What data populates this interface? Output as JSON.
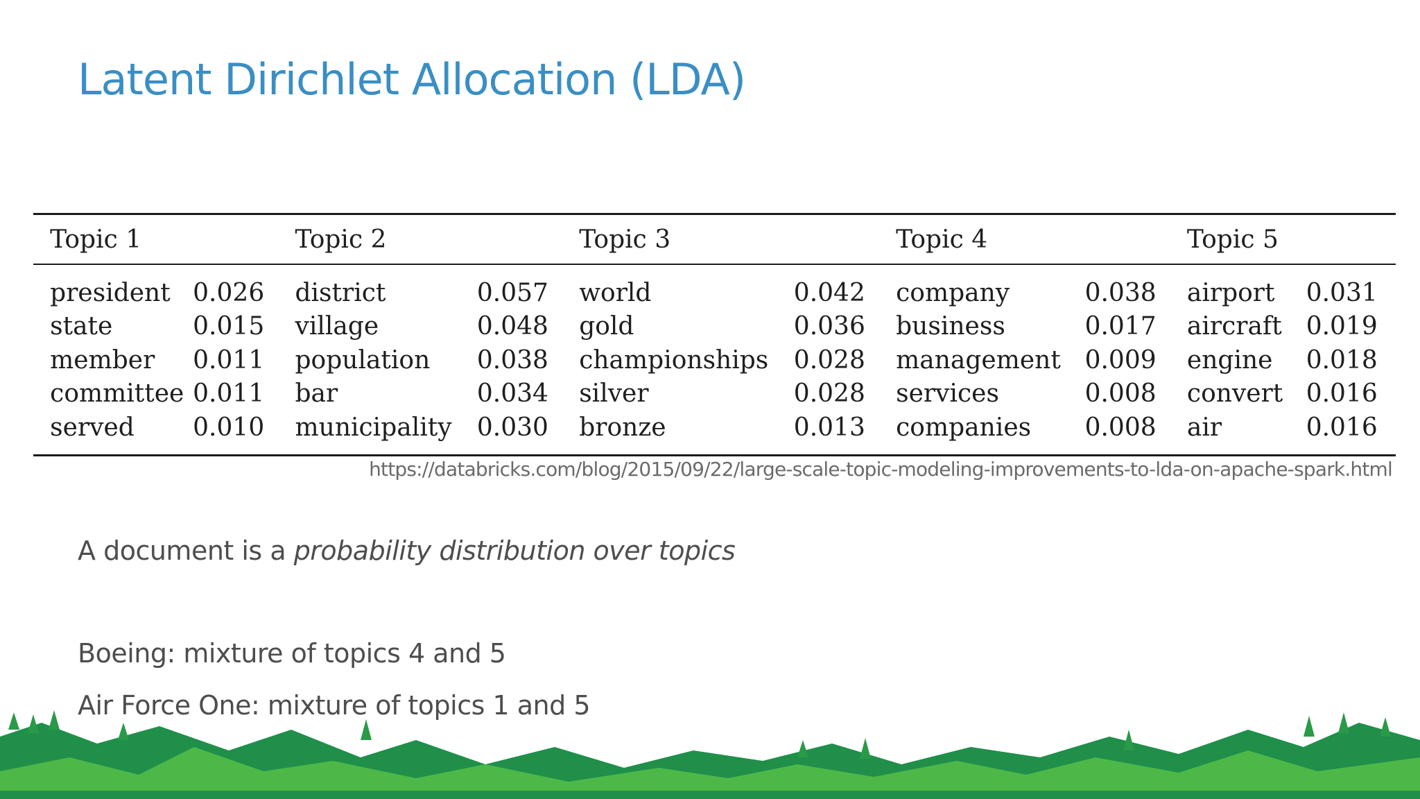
{
  "title": "Latent Dirichlet Allocation (LDA)",
  "table": {
    "headers": [
      "Topic 1",
      "Topic 2",
      "Topic 3",
      "Topic 4",
      "Topic 5"
    ],
    "rows": [
      [
        [
          "president",
          "0.026"
        ],
        [
          "district",
          "0.057"
        ],
        [
          "world",
          "0.042"
        ],
        [
          "company",
          "0.038"
        ],
        [
          "airport",
          "0.031"
        ]
      ],
      [
        [
          "state",
          "0.015"
        ],
        [
          "village",
          "0.048"
        ],
        [
          "gold",
          "0.036"
        ],
        [
          "business",
          "0.017"
        ],
        [
          "aircraft",
          "0.019"
        ]
      ],
      [
        [
          "member",
          "0.011"
        ],
        [
          "population",
          "0.038"
        ],
        [
          "championships",
          "0.028"
        ],
        [
          "management",
          "0.009"
        ],
        [
          "engine",
          "0.018"
        ]
      ],
      [
        [
          "committee",
          "0.011"
        ],
        [
          "bar",
          "0.034"
        ],
        [
          "silver",
          "0.028"
        ],
        [
          "services",
          "0.008"
        ],
        [
          "convert",
          "0.016"
        ]
      ],
      [
        [
          "served",
          "0.010"
        ],
        [
          "municipality",
          "0.030"
        ],
        [
          "bronze",
          "0.013"
        ],
        [
          "companies",
          "0.008"
        ],
        [
          "air",
          "0.016"
        ]
      ]
    ]
  },
  "source_url": "https://databricks.com/blog/2015/09/22/large-scale-topic-modeling-improvements-to-lda-on-apache-spark.html",
  "statement": {
    "prefix": "A document is a ",
    "emphasis": "probability distribution over topics"
  },
  "examples": [
    {
      "name": "Boeing",
      "text": ": mixture of topics 4 and 5"
    },
    {
      "name": "Air Force One",
      "text": ": mixture of topics 1 and 5"
    }
  ],
  "colors": {
    "title": "#3a8ec4",
    "hills_dark": "#1f8f4a",
    "hills_light": "#4db848",
    "trees": "#2a9a48"
  }
}
